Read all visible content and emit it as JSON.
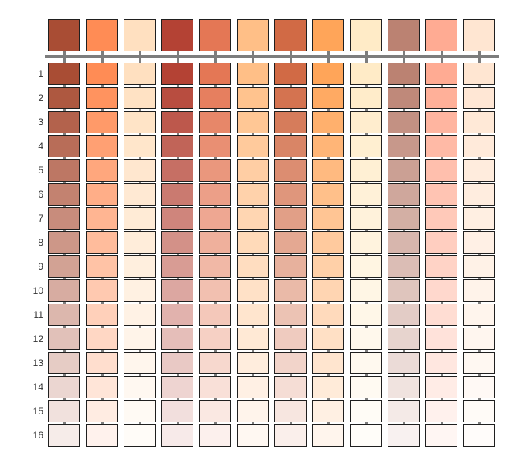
{
  "palette": {
    "base_colors": [
      "#a94d34",
      "#ff8c55",
      "#ffe0c0",
      "#b44234",
      "#e47755",
      "#ffbf87",
      "#d16a45",
      "#ffa559",
      "#ffebc7",
      "#bb8272",
      "#ffab93",
      "#ffe6d2"
    ],
    "steps": [
      1,
      2,
      3,
      4,
      5,
      6,
      7,
      8,
      9,
      10,
      11,
      12,
      13,
      14,
      15,
      16
    ]
  }
}
